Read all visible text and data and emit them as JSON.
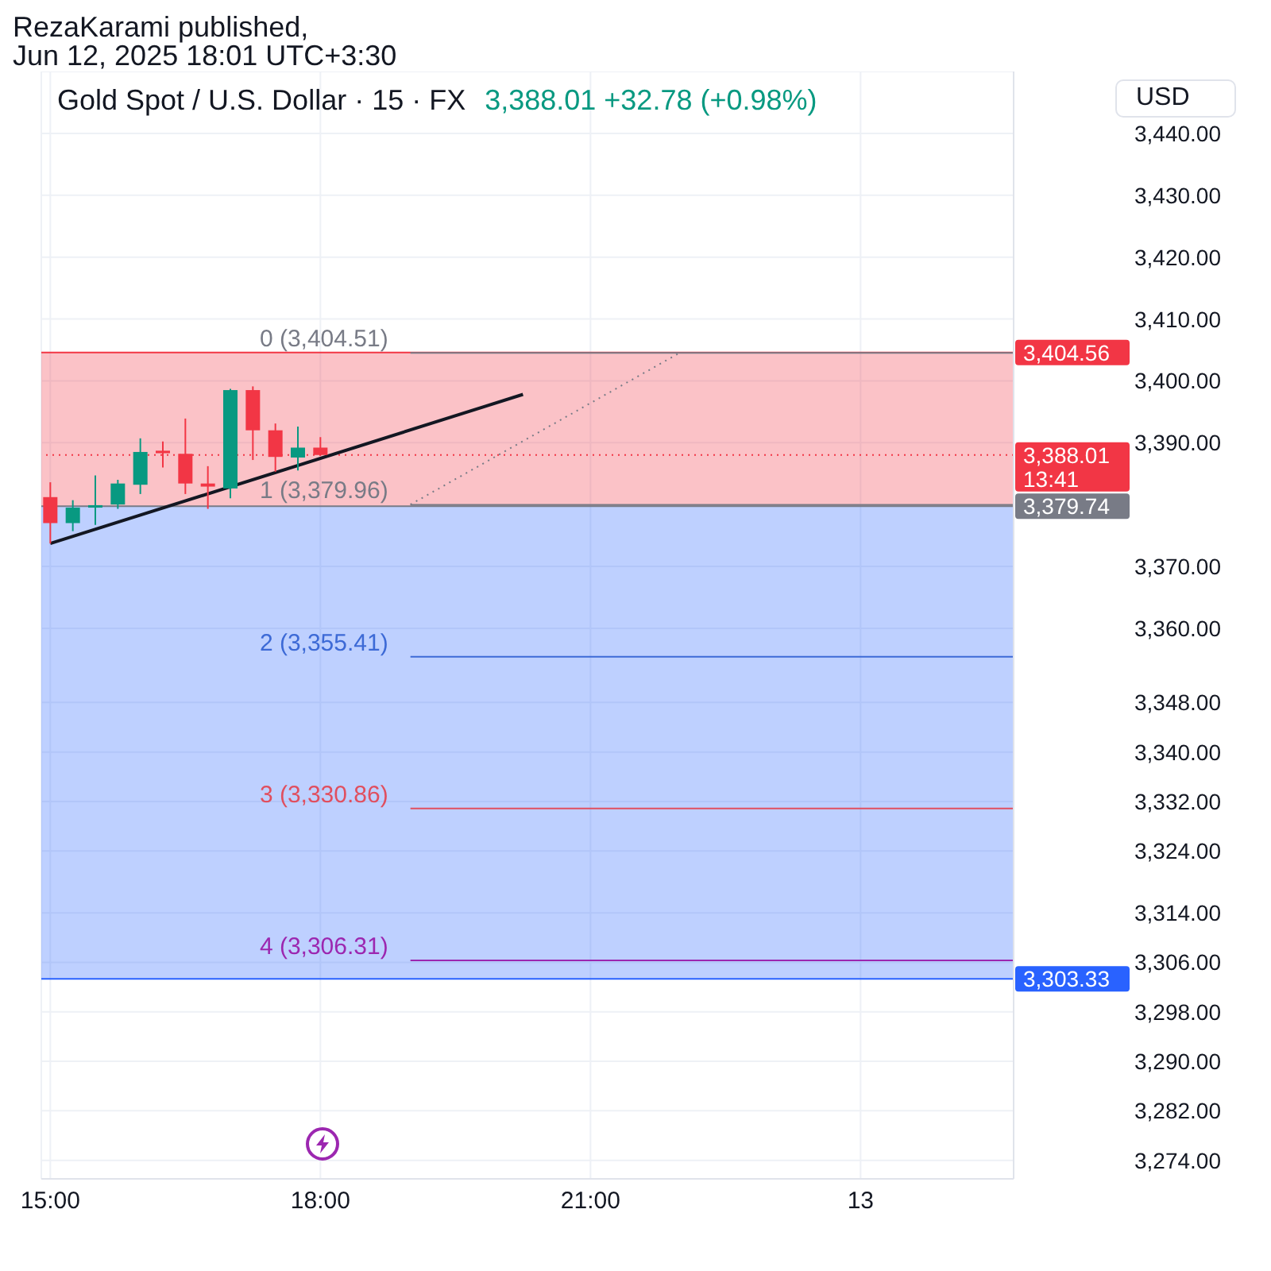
{
  "chart_data": {
    "type": "candlestick",
    "title": "Gold Spot / U.S. Dollar · 15 · FX",
    "subtitle": "3,388.01 +32.78 (+0.98%)",
    "ylabel": "USD",
    "annotations": [
      "RezaKarami published,",
      "Jun 12, 2025 18:01 UTC+3:30"
    ],
    "x": [
      "2025-06-12T15:00",
      "2025-06-12T15:15",
      "2025-06-12T15:30",
      "2025-06-12T15:45",
      "2025-06-12T16:00",
      "2025-06-12T16:15",
      "2025-06-12T16:30",
      "2025-06-12T16:45",
      "2025-06-12T17:00",
      "2025-06-12T17:15",
      "2025-06-12T17:30",
      "2025-06-12T17:45",
      "2025-06-12T18:00"
    ],
    "ohlc": [
      [
        3381.2,
        3383.6,
        3373.7,
        3377.0
      ],
      [
        3377.0,
        3380.7,
        3375.7,
        3379.5
      ],
      [
        3379.5,
        3384.7,
        3376.7,
        3379.9
      ],
      [
        3380.0,
        3384.0,
        3379.3,
        3383.4
      ],
      [
        3383.2,
        3390.7,
        3381.7,
        3388.5
      ],
      [
        3388.7,
        3390.2,
        3386.0,
        3388.3
      ],
      [
        3388.2,
        3393.9,
        3381.7,
        3383.4
      ],
      [
        3383.4,
        3386.2,
        3379.3,
        3382.9
      ],
      [
        3382.6,
        3398.7,
        3381.0,
        3398.5
      ],
      [
        3398.5,
        3399.1,
        3387.2,
        3392.0
      ],
      [
        3392.0,
        3393.1,
        3385.3,
        3387.7
      ],
      [
        3387.6,
        3392.6,
        3385.5,
        3389.2
      ],
      [
        3389.2,
        3390.9,
        3387.9,
        3388.01
      ]
    ],
    "colors": [
      "#f23645",
      "#089981",
      "#089981",
      "#089981",
      "#089981",
      "#f23645",
      "#f23645",
      "#f23645",
      "#089981",
      "#f23645",
      "#f23645",
      "#089981",
      "#f23645"
    ],
    "xlim": [
      "2025-06-12T14:54",
      "2025-06-13T01:42"
    ],
    "xticks": [
      {
        "value": "2025-06-12T15:00",
        "label": "15:00"
      },
      {
        "value": "2025-06-12T18:00",
        "label": "18:00"
      },
      {
        "value": "2025-06-12T21:00",
        "label": "21:00"
      },
      {
        "value": "2025-06-13",
        "label": "13"
      }
    ],
    "ylim": [
      3271,
      3450
    ],
    "yticks": [
      {
        "value": 3440,
        "label": "3,440.00"
      },
      {
        "value": 3430,
        "label": "3,430.00"
      },
      {
        "value": 3420,
        "label": "3,420.00"
      },
      {
        "value": 3410,
        "label": "3,410.00"
      },
      {
        "value": 3400,
        "label": "3,400.00"
      },
      {
        "value": 3390,
        "label": "3,390.00"
      },
      {
        "value": 3370,
        "label": "3,370.00"
      },
      {
        "value": 3360,
        "label": "3,360.00"
      },
      {
        "value": 3348,
        "label": "3,348.00"
      },
      {
        "value": 3340,
        "label": "3,340.00"
      },
      {
        "value": 3332,
        "label": "3,332.00"
      },
      {
        "value": 3324,
        "label": "3,324.00"
      },
      {
        "value": 3314,
        "label": "3,314.00"
      },
      {
        "value": 3306,
        "label": "3,306.00"
      },
      {
        "value": 3298,
        "label": "3,298.00"
      },
      {
        "value": 3290,
        "label": "3,290.00"
      },
      {
        "value": 3282,
        "label": "3,282.00"
      },
      {
        "value": 3274,
        "label": "3,274.00"
      }
    ],
    "grid": true,
    "series": [
      {
        "type": "line",
        "color": "#131722",
        "x": [
          "2025-06-12T15:00",
          "2025-06-12T20:15"
        ],
        "values": [
          3373.7,
          3397.8
        ]
      },
      {
        "type": "line",
        "color": "#787b86",
        "line_style": "dotted",
        "x": [
          "2025-06-12T19:00",
          "2025-06-12T22:00"
        ],
        "values": [
          3380.0,
          3404.6
        ]
      },
      {
        "type": "line",
        "name": "0 (3,404.51)",
        "color": "#787b86",
        "x": [
          "2025-06-12T19:00",
          "2025-06-13T01:42"
        ],
        "values": [
          3404.51,
          3404.51
        ]
      },
      {
        "type": "line",
        "name": "1 (3,379.96)",
        "color": "#787b86",
        "x": [
          "2025-06-12T19:00",
          "2025-06-13T01:42"
        ],
        "values": [
          3379.96,
          3379.96
        ]
      },
      {
        "type": "line",
        "name": "2 (3,355.41)",
        "color": "#3d6ad6",
        "x": [
          "2025-06-12T19:00",
          "2025-06-13T01:42"
        ],
        "values": [
          3355.41,
          3355.41
        ]
      },
      {
        "type": "line",
        "name": "3 (3,330.86)",
        "color": "#e04f5f",
        "x": [
          "2025-06-12T19:00",
          "2025-06-13T01:42"
        ],
        "values": [
          3330.86,
          3330.86
        ]
      },
      {
        "type": "line",
        "name": "4 (3,306.31)",
        "color": "#9c27b0",
        "x": [
          "2025-06-12T19:00",
          "2025-06-13T01:42"
        ],
        "values": [
          3306.31,
          3306.31
        ]
      }
    ],
    "ref_lines": [
      {
        "axis": "y",
        "value": 3404.56,
        "label": "3,404.56",
        "color": "#f23645"
      },
      {
        "axis": "y",
        "value": 3388.01,
        "label": "3,388.01\n13:41",
        "color": "#f23645",
        "line_style": "dotted"
      },
      {
        "axis": "y",
        "value": 3379.74,
        "label": "3,379.74",
        "color": "#787b86"
      },
      {
        "axis": "y",
        "value": 3303.33,
        "label": "3,303.33",
        "color": "#2962ff"
      }
    ],
    "bands": [
      {
        "axis": "y",
        "from": 3379.74,
        "to": 3404.56,
        "color": "#f23645"
      },
      {
        "axis": "y",
        "from": 3303.33,
        "to": 3379.74,
        "color": "#2962ff"
      }
    ]
  }
}
